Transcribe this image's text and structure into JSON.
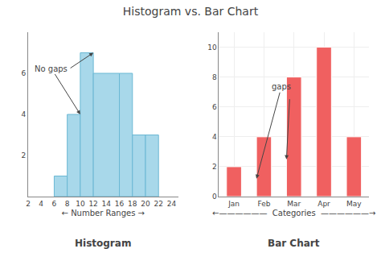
{
  "title": "Histogram vs. Bar Chart",
  "chart_data": [
    {
      "type": "histogram",
      "title": "Histogram",
      "xlabel": "← Number Ranges →",
      "bins": [
        6,
        8,
        10,
        12,
        16,
        18,
        20,
        22
      ],
      "values": [
        1,
        4,
        7,
        6,
        6,
        3,
        3
      ],
      "color": "#a8d8ea",
      "xlim": [
        2,
        25
      ],
      "ylim": [
        0,
        8
      ],
      "xticks": [
        2,
        4,
        6,
        8,
        10,
        12,
        14,
        16,
        18,
        20,
        22,
        24
      ],
      "yticks": [
        2,
        4,
        6
      ],
      "grid": false,
      "annotations": [
        {
          "text": "No gaps",
          "arrows": [
            {
              "x": 10,
              "y": 4.0
            },
            {
              "x": 12,
              "y": 7.0
            }
          ]
        }
      ]
    },
    {
      "type": "bar",
      "title": "Bar Chart",
      "xlabel": "←——————  Categories  ——————→",
      "categories": [
        "Jan",
        "Feb",
        "Mar",
        "Apr",
        "May"
      ],
      "values": [
        2,
        4,
        8,
        10,
        4
      ],
      "color": "#f06060",
      "ylim": [
        0,
        11
      ],
      "yticks": [
        0,
        2,
        4,
        6,
        8,
        10
      ],
      "grid": true,
      "annotations": [
        {
          "text": "gaps",
          "arrows": [
            {
              "x": 0.75,
              "y": 1.2
            },
            {
              "x": 1.75,
              "y": 2.5
            }
          ]
        }
      ]
    }
  ]
}
